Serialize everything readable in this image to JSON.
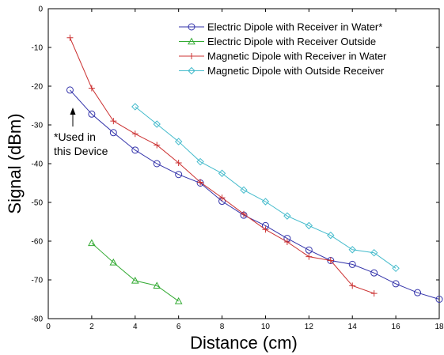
{
  "chart_data": {
    "type": "line",
    "xlabel": "Distance (cm)",
    "ylabel": "Signal (dBm)",
    "xlim": [
      0,
      18
    ],
    "ylim": [
      -80,
      0
    ],
    "xticks": [
      0,
      2,
      4,
      6,
      8,
      10,
      12,
      14,
      16,
      18
    ],
    "yticks": [
      0,
      -10,
      -20,
      -30,
      -40,
      -50,
      -60,
      -70,
      -80
    ],
    "grid": false,
    "legend_position": "top-right",
    "series": [
      {
        "name": "Electric Dipole with Receiver in Water*",
        "color": "#3333aa",
        "marker": "circle",
        "x": [
          1,
          2,
          3,
          4,
          5,
          6,
          7,
          8,
          9,
          10,
          11,
          12,
          13,
          14,
          15,
          16,
          17,
          18
        ],
        "y": [
          -21,
          -27.2,
          -32,
          -36.5,
          -40,
          -42.8,
          -45,
          -49.7,
          -53.3,
          -56,
          -59.3,
          -62.3,
          -65,
          -66,
          -68.2,
          -71,
          -73.3,
          -75
        ]
      },
      {
        "name": "Electric Dipole with Receiver Outside",
        "color": "#33aa33",
        "marker": "triangle",
        "x": [
          2,
          3,
          4,
          5,
          6
        ],
        "y": [
          -60.5,
          -65.5,
          -70.2,
          -71.5,
          -75.5
        ]
      },
      {
        "name": "Magnetic Dipole with Receiver in Water",
        "color": "#cc3333",
        "marker": "plus",
        "x": [
          1,
          2,
          3,
          4,
          5,
          6,
          7,
          8,
          9,
          10,
          11,
          12,
          13,
          14,
          15
        ],
        "y": [
          -7.5,
          -20.5,
          -29,
          -32.3,
          -35.2,
          -39.8,
          -44.8,
          -48.8,
          -53,
          -57,
          -60.2,
          -64,
          -65,
          -71.5,
          -73.5
        ]
      },
      {
        "name": "Magnetic Dipole with Outside Receiver",
        "color": "#44bbcc",
        "marker": "diamond",
        "x": [
          4,
          5,
          6,
          7,
          8,
          9,
          10,
          11,
          12,
          13,
          14,
          15,
          16
        ],
        "y": [
          -25.3,
          -29.8,
          -34.3,
          -39.5,
          -42.5,
          -46.8,
          -49.8,
          -53.5,
          -56,
          -58.5,
          -62.2,
          -63,
          -67
        ]
      }
    ],
    "annotation": {
      "lines": [
        "*Used in",
        "this Device"
      ],
      "arrow_to_x": 1,
      "arrow_to_y": -24
    }
  }
}
